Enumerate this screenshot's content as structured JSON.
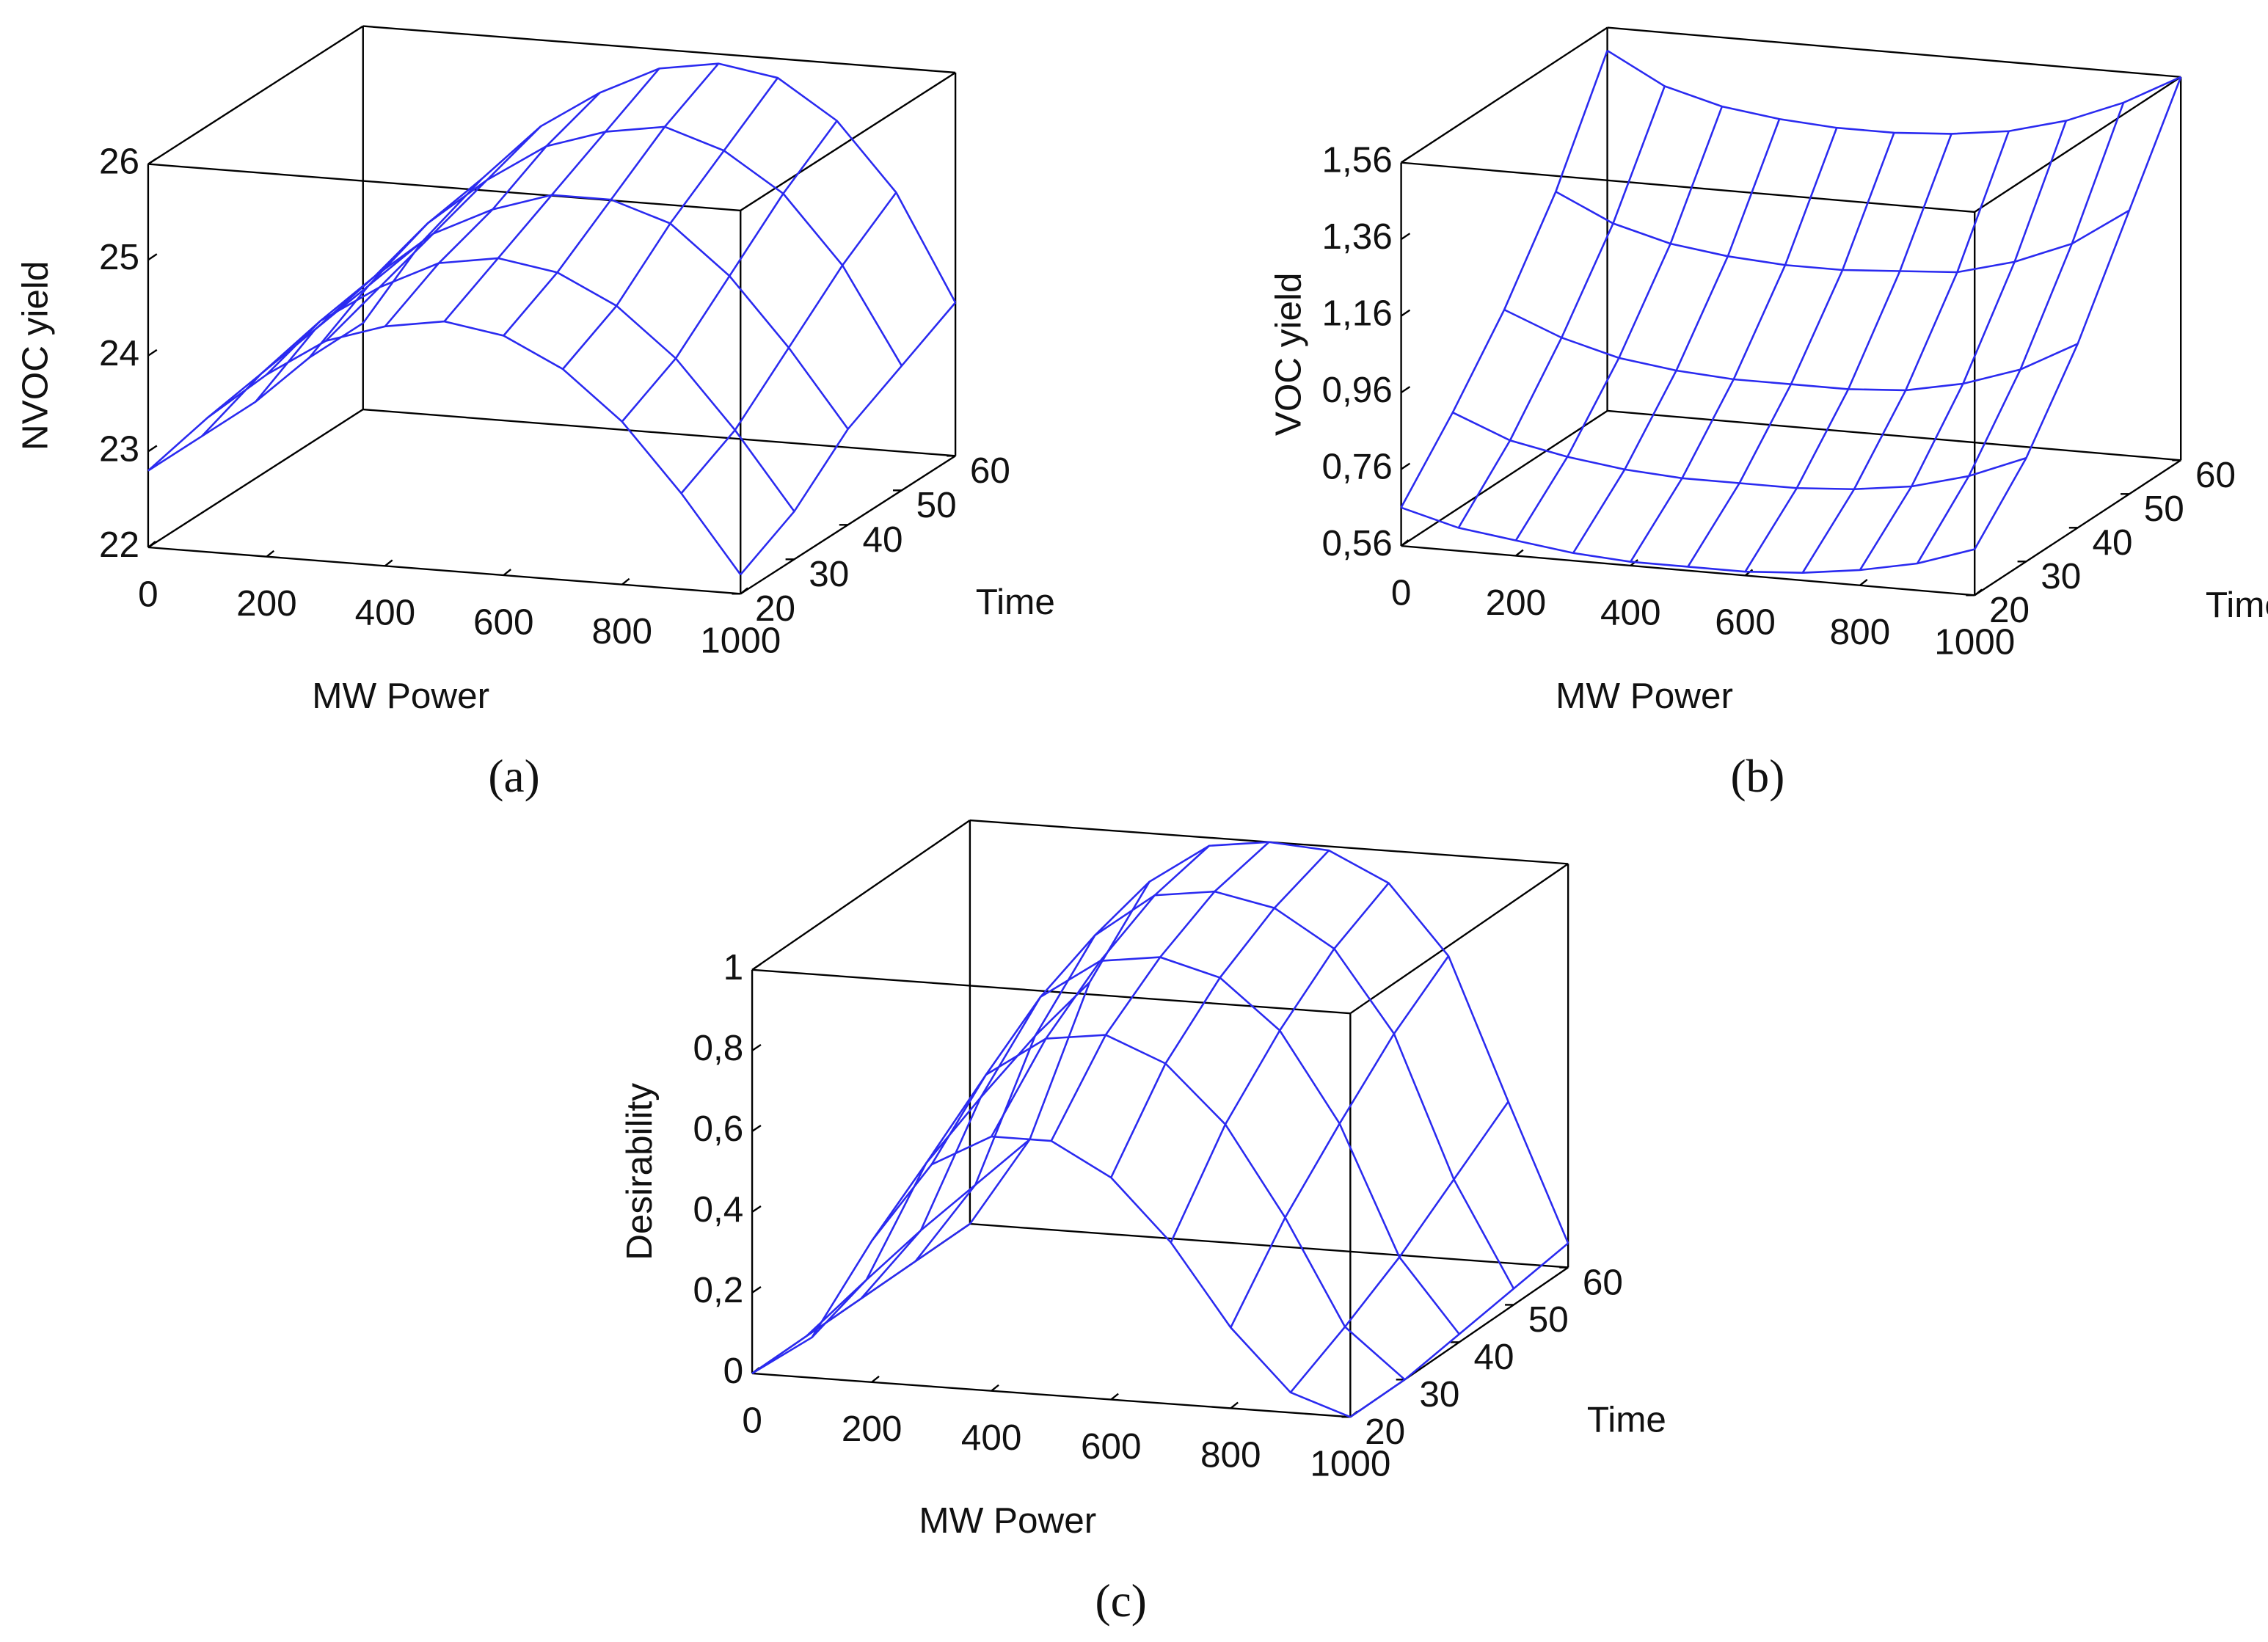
{
  "chart_data": [
    {
      "type": "surface",
      "panel_label": "(a)",
      "x_label": "MW Power",
      "y_label": "Time",
      "z_label": "NVOC yield",
      "color": "#3c3cf5",
      "x": [
        0,
        100,
        200,
        300,
        400,
        500,
        600,
        700,
        800,
        900,
        1000
      ],
      "y": [
        20,
        30,
        40,
        50,
        60
      ],
      "values": [
        [
          22.8,
          23.4,
          23.9,
          24.3,
          24.5,
          24.6,
          24.5,
          24.2,
          23.7,
          23.0,
          22.2
        ],
        [
          22.8,
          23.5,
          24.1,
          24.5,
          24.8,
          24.9,
          24.8,
          24.5,
          24.0,
          23.3,
          22.5
        ],
        [
          22.8,
          23.6,
          24.2,
          24.7,
          25.0,
          25.2,
          25.2,
          25.0,
          24.5,
          23.8,
          23.0
        ],
        [
          22.9,
          23.7,
          24.4,
          24.9,
          25.3,
          25.5,
          25.6,
          25.4,
          25.0,
          24.3,
          23.3
        ],
        [
          22.9,
          23.8,
          24.5,
          25.1,
          25.5,
          25.8,
          25.9,
          25.8,
          25.4,
          24.7,
          23.6
        ]
      ],
      "xlim": [
        0,
        1000
      ],
      "ylim": [
        20,
        60
      ],
      "zlim": [
        22,
        26
      ],
      "xticks": [
        0,
        200,
        400,
        600,
        800,
        1000
      ],
      "yticks": [
        20,
        30,
        40,
        50,
        60
      ],
      "zticks": [
        22,
        23,
        24,
        25,
        26
      ]
    },
    {
      "type": "surface",
      "panel_label": "(b)",
      "x_label": "MW Power",
      "y_label": "Time",
      "z_label": "VOC yield",
      "color": "#3c3cf5",
      "x": [
        0,
        100,
        200,
        300,
        400,
        500,
        600,
        700,
        800,
        900,
        1000
      ],
      "y": [
        20,
        30,
        40,
        50,
        60
      ],
      "values": [
        [
          0.66,
          0.62,
          0.6,
          0.58,
          0.57,
          0.57,
          0.57,
          0.58,
          0.6,
          0.63,
          0.68
        ],
        [
          0.82,
          0.76,
          0.73,
          0.71,
          0.7,
          0.7,
          0.7,
          0.71,
          0.73,
          0.77,
          0.83
        ],
        [
          1.0,
          0.94,
          0.9,
          0.88,
          0.87,
          0.87,
          0.87,
          0.88,
          0.91,
          0.96,
          1.04
        ],
        [
          1.22,
          1.15,
          1.11,
          1.09,
          1.08,
          1.08,
          1.09,
          1.1,
          1.14,
          1.2,
          1.3
        ],
        [
          1.5,
          1.42,
          1.38,
          1.36,
          1.35,
          1.35,
          1.36,
          1.38,
          1.42,
          1.48,
          1.56
        ]
      ],
      "xlim": [
        0,
        1000
      ],
      "ylim": [
        20,
        60
      ],
      "zlim": [
        0.56,
        1.56
      ],
      "xticks": [
        0,
        200,
        400,
        600,
        800,
        1000
      ],
      "yticks": [
        20,
        30,
        40,
        50,
        60
      ],
      "zticks": [
        {
          "value": 0.56,
          "label": "0,56"
        },
        {
          "value": 0.76,
          "label": "0,76"
        },
        {
          "value": 0.96,
          "label": "0,96"
        },
        {
          "value": 1.16,
          "label": "1,16"
        },
        {
          "value": 1.36,
          "label": "1,36"
        },
        {
          "value": 1.56,
          "label": "1,56"
        }
      ]
    },
    {
      "type": "surface",
      "panel_label": "(c)",
      "x_label": "MW Power",
      "y_label": "Time",
      "z_label": "Desirability",
      "color": "#1010f0",
      "x": [
        0,
        100,
        200,
        300,
        400,
        500,
        600,
        700,
        800,
        900,
        1000
      ],
      "y": [
        20,
        30,
        40,
        50,
        60
      ],
      "values": [
        [
          0,
          0.1,
          0.35,
          0.55,
          0.63,
          0.63,
          0.55,
          0.4,
          0.2,
          0.05,
          0
        ],
        [
          0,
          0.15,
          0.45,
          0.68,
          0.78,
          0.8,
          0.74,
          0.6,
          0.38,
          0.12,
          0
        ],
        [
          0,
          0.18,
          0.52,
          0.78,
          0.88,
          0.9,
          0.86,
          0.74,
          0.52,
          0.2,
          0.02
        ],
        [
          0,
          0.2,
          0.58,
          0.84,
          0.95,
          0.97,
          0.94,
          0.85,
          0.65,
          0.3,
          0.04
        ],
        [
          0,
          0.22,
          0.62,
          0.88,
          0.98,
          1.0,
          0.99,
          0.92,
          0.75,
          0.4,
          0.06
        ]
      ],
      "xlim": [
        0,
        1000
      ],
      "ylim": [
        20,
        60
      ],
      "zlim": [
        0,
        1
      ],
      "xticks": [
        0,
        200,
        400,
        600,
        800,
        1000
      ],
      "yticks": [
        20,
        30,
        40,
        50,
        60
      ],
      "zticks": [
        0,
        {
          "value": 0.2,
          "label": "0,2"
        },
        {
          "value": 0.4,
          "label": "0,4"
        },
        {
          "value": 0.6,
          "label": "0,6"
        },
        {
          "value": 0.8,
          "label": "0,8"
        },
        1
      ]
    }
  ]
}
